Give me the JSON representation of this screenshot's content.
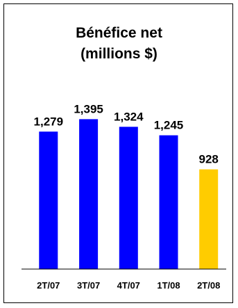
{
  "chart_data": {
    "type": "bar",
    "title_lines": [
      "Bénéfice net",
      "(millions $)"
    ],
    "categories": [
      "2T/07",
      "3T/07",
      "4T/07",
      "1T/08",
      "2T/08"
    ],
    "values": [
      1279,
      1395,
      1324,
      1245,
      928
    ],
    "value_labels": [
      "1,279",
      "1,395",
      "1,324",
      "1,245",
      "928"
    ],
    "colors": [
      "#0000ff",
      "#0000ff",
      "#0000ff",
      "#0000ff",
      "#ffcc00"
    ],
    "ylim": [
      0,
      1650
    ],
    "grid": false,
    "legend": "none"
  }
}
